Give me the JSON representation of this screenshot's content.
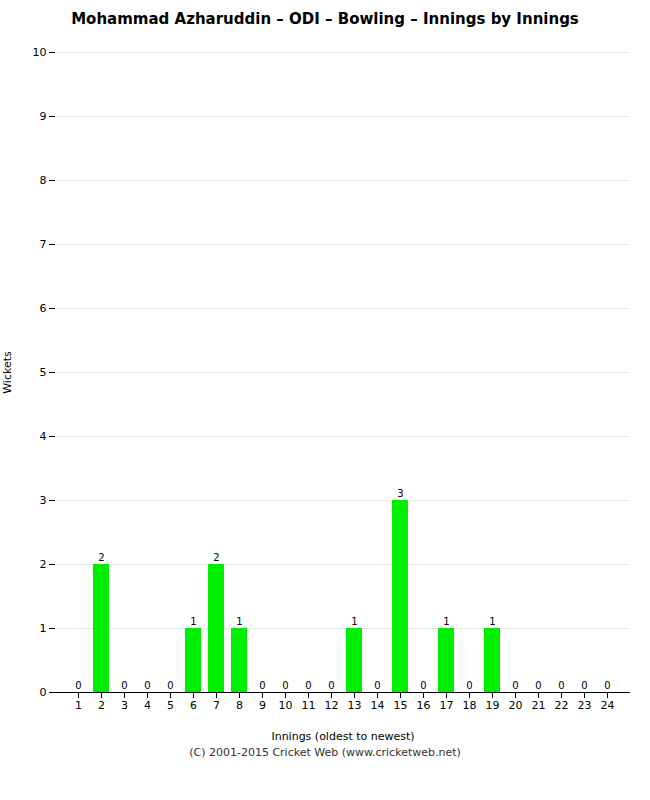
{
  "chart_data": {
    "type": "bar",
    "title": "Mohammad Azharuddin – ODI – Bowling – Innings by Innings",
    "xlabel": "Innings (oldest to newest)",
    "ylabel": "Wickets",
    "categories": [
      "1",
      "2",
      "3",
      "4",
      "5",
      "6",
      "7",
      "8",
      "9",
      "10",
      "11",
      "12",
      "13",
      "14",
      "15",
      "16",
      "17",
      "18",
      "19",
      "20",
      "21",
      "22",
      "23",
      "24"
    ],
    "values": [
      0,
      2,
      0,
      0,
      0,
      1,
      2,
      1,
      0,
      0,
      0,
      0,
      1,
      0,
      3,
      0,
      1,
      0,
      1,
      0,
      0,
      0,
      0,
      0
    ],
    "color": "#00ee00",
    "ylim": [
      0,
      10
    ],
    "yticks": [
      0,
      1,
      2,
      3,
      4,
      5,
      6,
      7,
      8,
      9,
      10
    ],
    "grid": true,
    "data_labels": true,
    "annotations": [
      "(C) 2001-2015 Cricket Web (www.cricketweb.net)"
    ]
  }
}
